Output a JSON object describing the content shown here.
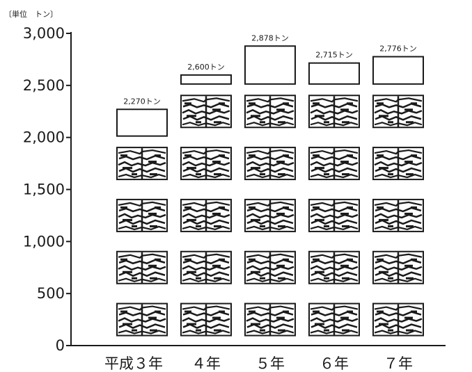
{
  "chart_data": {
    "type": "bar",
    "unit_label": "〔単位　トン〕",
    "categories": [
      "平成３年",
      "４年",
      "５年",
      "６年",
      "７年"
    ],
    "values": [
      2270,
      2600,
      2878,
      2715,
      2776
    ],
    "data_labels": [
      "2,270トン",
      "2,600トン",
      "2,878トン",
      "2,715トン",
      "2,776トン"
    ],
    "y_ticks": [
      {
        "value": 3000,
        "label": "3,000"
      },
      {
        "value": 2500,
        "label": "2,500"
      },
      {
        "value": 2000,
        "label": "2,000"
      },
      {
        "value": 1500,
        "label": "1,500"
      },
      {
        "value": 1000,
        "label": "1,000"
      },
      {
        "value": 500,
        "label": "500"
      },
      {
        "value": 0,
        "label": "0"
      }
    ],
    "ylim": [
      0,
      3000
    ],
    "pictogram_unit": 500,
    "grid": false,
    "colors": {
      "ink": "#1a1a1a",
      "background": "#ffffff"
    }
  }
}
